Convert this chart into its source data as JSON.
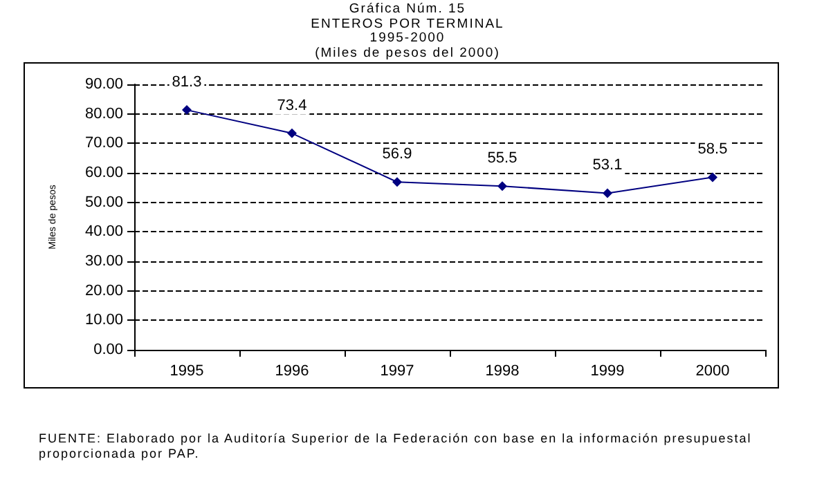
{
  "chart_data": {
    "type": "line",
    "title": "Gráfica Núm. 15\nENTEROS POR TERMINAL\n1995-2000\n(Miles de pesos del 2000)",
    "ylabel": "Miles de pesos",
    "categories": [
      "1995",
      "1996",
      "1997",
      "1998",
      "1999",
      "2000"
    ],
    "series": [
      {
        "color": "#000080",
        "values": [
          81.3,
          73.4,
          56.9,
          55.5,
          53.1,
          58.5
        ]
      }
    ],
    "ylim": [
      0,
      90
    ],
    "yticks": [
      {
        "value": 0,
        "label": "0.00"
      },
      {
        "value": 10,
        "label": "10.00"
      },
      {
        "value": 20,
        "label": "20.00"
      },
      {
        "value": 30,
        "label": "30.00"
      },
      {
        "value": 40,
        "label": "40.00"
      },
      {
        "value": 50,
        "label": "50.00"
      },
      {
        "value": 60,
        "label": "60.00"
      },
      {
        "value": 70,
        "label": "70.00"
      },
      {
        "value": 80,
        "label": "80.00"
      },
      {
        "value": 90,
        "label": "90.00"
      }
    ],
    "grid": "y",
    "line_style": "solid",
    "marker": "diamond",
    "data_labels": true,
    "annotations": [
      "FUENTE:   Elaborado por la Auditoría Superior de la Federación con base en la información presupuestal proporcionada por PAP."
    ]
  }
}
